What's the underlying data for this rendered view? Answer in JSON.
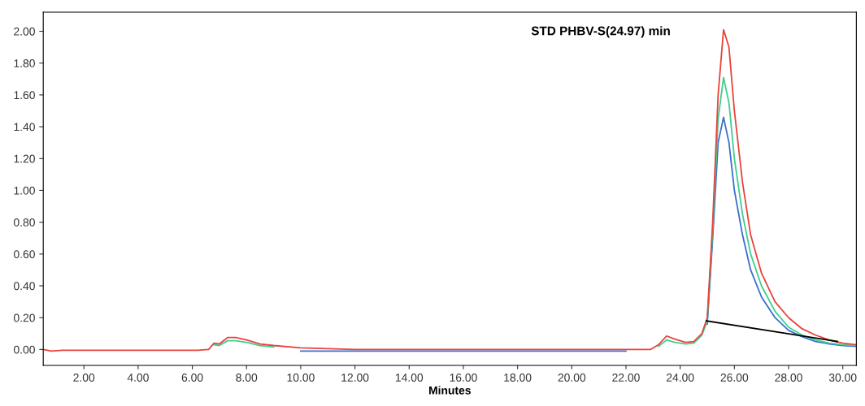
{
  "chart_data": {
    "type": "line",
    "xlabel": "Minutes",
    "annotations": [
      "STD PHBV-S(24.97) min"
    ],
    "x": [
      0.5,
      0.8,
      1.2,
      3,
      6.2,
      6.6,
      6.8,
      7.0,
      7.3,
      7.6,
      8.0,
      8.5,
      9,
      10,
      12,
      14,
      16,
      18,
      20,
      22,
      22.9,
      23.2,
      23.5,
      23.8,
      24.2,
      24.5,
      24.8,
      25.0,
      25.2,
      25.4,
      25.6,
      25.8,
      26.0,
      26.3,
      26.6,
      27.0,
      27.5,
      28,
      28.5,
      29,
      29.5,
      30,
      30.5
    ],
    "series": [
      {
        "color": "#e8433a",
        "values": [
          0,
          -0.01,
          -0.005,
          -0.005,
          -0.005,
          0.0,
          0.04,
          0.035,
          0.075,
          0.075,
          0.06,
          0.035,
          0.025,
          0.01,
          0.0,
          0.0,
          0.0,
          0.0,
          0.0,
          0.0,
          0.0,
          0.03,
          0.085,
          0.065,
          0.045,
          0.05,
          0.1,
          0.2,
          0.8,
          1.6,
          2.01,
          1.9,
          1.5,
          1.05,
          0.72,
          0.48,
          0.3,
          0.2,
          0.13,
          0.09,
          0.06,
          0.04,
          0.03
        ]
      },
      {
        "color": "#3ecf8e",
        "values": [
          null,
          null,
          null,
          null,
          null,
          null,
          0.03,
          0.025,
          0.055,
          0.055,
          0.045,
          0.025,
          0.015,
          null,
          null,
          null,
          null,
          null,
          null,
          null,
          null,
          0.02,
          0.06,
          0.045,
          0.035,
          0.04,
          0.09,
          0.18,
          0.75,
          1.45,
          1.71,
          1.55,
          1.2,
          0.85,
          0.6,
          0.4,
          0.24,
          0.14,
          0.09,
          0.06,
          0.04,
          0.03,
          0.025
        ]
      },
      {
        "color": "#3a6fd0",
        "values": [
          null,
          null,
          null,
          null,
          null,
          null,
          null,
          null,
          null,
          null,
          null,
          null,
          null,
          -0.01,
          -0.01,
          -0.01,
          -0.01,
          -0.01,
          -0.01,
          -0.01,
          null,
          null,
          null,
          null,
          null,
          null,
          null,
          0.16,
          0.7,
          1.3,
          1.46,
          1.3,
          1.0,
          0.72,
          0.5,
          0.33,
          0.2,
          0.12,
          0.08,
          0.05,
          0.035,
          0.025,
          0.02
        ]
      },
      {
        "color": "#000000",
        "x": [
          24.97,
          29.8
        ],
        "values": [
          0.18,
          0.05
        ]
      }
    ],
    "xlim": [
      0.5,
      30.5
    ],
    "ylim": [
      -0.1,
      2.12
    ],
    "xticks": [
      {
        "value": 2,
        "label": "2.00"
      },
      {
        "value": 4,
        "label": "4.00"
      },
      {
        "value": 6,
        "label": "6.00"
      },
      {
        "value": 8,
        "label": "8.00"
      },
      {
        "value": 10,
        "label": "10.00"
      },
      {
        "value": 12,
        "label": "12.00"
      },
      {
        "value": 14,
        "label": "14.00"
      },
      {
        "value": 16,
        "label": "16.00"
      },
      {
        "value": 18,
        "label": "18.00"
      },
      {
        "value": 20,
        "label": "20.00"
      },
      {
        "value": 22,
        "label": "22.00"
      },
      {
        "value": 24,
        "label": "24.00"
      },
      {
        "value": 26,
        "label": "26.00"
      },
      {
        "value": 28,
        "label": "28.00"
      },
      {
        "value": 30,
        "label": "30.00"
      }
    ],
    "yticks": [
      {
        "value": 0,
        "label": "0.00"
      },
      {
        "value": 0.2,
        "label": "0.20"
      },
      {
        "value": 0.4,
        "label": "0.40"
      },
      {
        "value": 0.6,
        "label": "0.60"
      },
      {
        "value": 0.8,
        "label": "0.80"
      },
      {
        "value": 1.0,
        "label": "1.00"
      },
      {
        "value": 1.2,
        "label": "1.20"
      },
      {
        "value": 1.4,
        "label": "1.40"
      },
      {
        "value": 1.6,
        "label": "1.60"
      },
      {
        "value": 1.8,
        "label": "1.80"
      },
      {
        "value": 2.0,
        "label": "2.00"
      }
    ],
    "grid": false
  }
}
